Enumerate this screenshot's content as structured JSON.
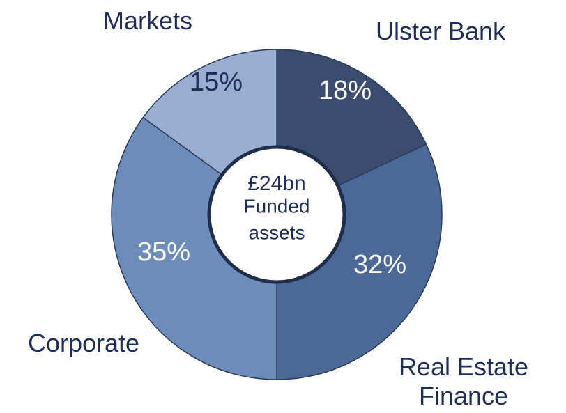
{
  "chart_data": {
    "type": "pie",
    "categories": [
      "Ulster Bank",
      "Real Estate Finance",
      "Corporate",
      "Markets"
    ],
    "values": [
      18,
      32,
      35,
      15
    ],
    "value_labels": [
      "18%",
      "32%",
      "35%",
      "15%"
    ],
    "colors": [
      "#3a4d6e",
      "#4b6898",
      "#6e8cba",
      "#9aaed0"
    ],
    "center_text": [
      "£24bn",
      "Funded",
      "assets"
    ]
  }
}
